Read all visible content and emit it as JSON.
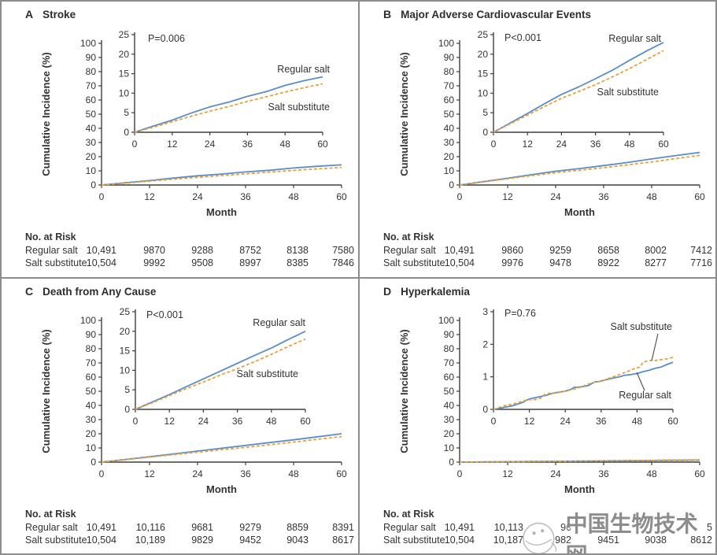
{
  "figure": {
    "ylabel": "Cumulative Incidence (%)",
    "xlabel": "Month",
    "risk_header": "No. at Risk",
    "series_names": [
      "Regular salt",
      "Salt substitute"
    ],
    "watermark": {
      "text": "中国生物技术网",
      "logo": "swirl-badge-icon"
    },
    "colors": {
      "regular_salt": "#5b8dc8",
      "salt_substitute": "#e7a13c",
      "axis": "#3e3e3e",
      "text": "#333333",
      "border": "#8d8d8d",
      "watermark": "#868686"
    }
  },
  "chart_data": [
    {
      "type": "line",
      "letter": "A",
      "title": "Stroke",
      "pvalue": "P=0.006",
      "axes": {
        "main": {
          "xlim": [
            0,
            60
          ],
          "xticks": [
            0,
            12,
            24,
            36,
            48,
            60
          ],
          "ylim": [
            0,
            100
          ],
          "yticks": [
            0,
            10,
            20,
            30,
            40,
            50,
            60,
            70,
            80,
            90,
            100
          ]
        },
        "inset": {
          "ylim": [
            0,
            25
          ],
          "yticks": [
            0,
            5,
            10,
            15,
            20,
            25
          ]
        }
      },
      "series": [
        {
          "name": "Regular salt",
          "line": "solid",
          "color_key": "regular_salt",
          "points": [
            [
              0,
              0
            ],
            [
              6,
              1.6
            ],
            [
              12,
              3.1
            ],
            [
              18,
              4.9
            ],
            [
              24,
              6.5
            ],
            [
              30,
              7.7
            ],
            [
              36,
              9.2
            ],
            [
              42,
              10.4
            ],
            [
              48,
              12.0
            ],
            [
              54,
              13.2
            ],
            [
              60,
              14.2
            ]
          ]
        },
        {
          "name": "Salt substitute",
          "line": "dashed",
          "color_key": "salt_substitute",
          "points": [
            [
              0,
              0
            ],
            [
              6,
              1.3
            ],
            [
              12,
              2.7
            ],
            [
              18,
              4.1
            ],
            [
              24,
              5.4
            ],
            [
              30,
              6.6
            ],
            [
              36,
              7.9
            ],
            [
              42,
              9.1
            ],
            [
              48,
              10.3
            ],
            [
              54,
              11.4
            ],
            [
              60,
              12.4
            ]
          ]
        }
      ],
      "risk": {
        "rows": [
          {
            "label": "Regular salt",
            "values": [
              "10,491",
              "9870",
              "9288",
              "8752",
              "8138",
              "7580"
            ]
          },
          {
            "label": "Salt substitute",
            "values": [
              "10,504",
              "9992",
              "9508",
              "8997",
              "8385",
              "7846"
            ]
          }
        ]
      }
    },
    {
      "type": "line",
      "letter": "B",
      "title": "Major Adverse Cardiovascular Events",
      "pvalue": "P<0.001",
      "axes": {
        "main": {
          "xlim": [
            0,
            60
          ],
          "xticks": [
            0,
            12,
            24,
            36,
            48,
            60
          ],
          "ylim": [
            0,
            100
          ],
          "yticks": [
            0,
            10,
            20,
            30,
            40,
            50,
            60,
            70,
            80,
            90,
            100
          ]
        },
        "inset": {
          "ylim": [
            0,
            25
          ],
          "yticks": [
            0,
            5,
            10,
            15,
            20,
            25
          ]
        }
      },
      "series": [
        {
          "name": "Regular salt",
          "line": "solid",
          "color_key": "regular_salt",
          "points": [
            [
              0,
              0
            ],
            [
              6,
              2.4
            ],
            [
              12,
              4.8
            ],
            [
              18,
              7.3
            ],
            [
              24,
              9.7
            ],
            [
              30,
              11.6
            ],
            [
              36,
              13.7
            ],
            [
              42,
              15.9
            ],
            [
              48,
              18.4
            ],
            [
              54,
              20.8
            ],
            [
              60,
              23.0
            ]
          ]
        },
        {
          "name": "Salt substitute",
          "line": "dashed",
          "color_key": "salt_substitute",
          "points": [
            [
              0,
              0
            ],
            [
              6,
              2.2
            ],
            [
              12,
              4.4
            ],
            [
              18,
              6.6
            ],
            [
              24,
              8.7
            ],
            [
              30,
              10.4
            ],
            [
              36,
              12.2
            ],
            [
              42,
              14.2
            ],
            [
              48,
              16.3
            ],
            [
              54,
              18.6
            ],
            [
              60,
              20.9
            ]
          ]
        }
      ],
      "risk": {
        "rows": [
          {
            "label": "Regular salt",
            "values": [
              "10,491",
              "9860",
              "9259",
              "8658",
              "8002",
              "7412"
            ]
          },
          {
            "label": "Salt substitute",
            "values": [
              "10,504",
              "9976",
              "9478",
              "8922",
              "8277",
              "7716"
            ]
          }
        ]
      }
    },
    {
      "type": "line",
      "letter": "C",
      "title": "Death from Any Cause",
      "pvalue": "P<0.001",
      "axes": {
        "main": {
          "xlim": [
            0,
            60
          ],
          "xticks": [
            0,
            12,
            24,
            36,
            48,
            60
          ],
          "ylim": [
            0,
            100
          ],
          "yticks": [
            0,
            10,
            20,
            30,
            40,
            50,
            60,
            70,
            80,
            90,
            100
          ]
        },
        "inset": {
          "ylim": [
            0,
            25
          ],
          "yticks": [
            0,
            5,
            10,
            15,
            20,
            25
          ]
        }
      },
      "series": [
        {
          "name": "Regular salt",
          "line": "solid",
          "color_key": "regular_salt",
          "points": [
            [
              0,
              0
            ],
            [
              6,
              1.9
            ],
            [
              12,
              3.8
            ],
            [
              18,
              5.8
            ],
            [
              24,
              7.8
            ],
            [
              30,
              9.8
            ],
            [
              36,
              11.8
            ],
            [
              42,
              13.8
            ],
            [
              48,
              15.7
            ],
            [
              54,
              17.9
            ],
            [
              60,
              20.0
            ]
          ]
        },
        {
          "name": "Salt substitute",
          "line": "dashed",
          "color_key": "salt_substitute",
          "points": [
            [
              0,
              0
            ],
            [
              6,
              1.7
            ],
            [
              12,
              3.5
            ],
            [
              18,
              5.3
            ],
            [
              24,
              7.0
            ],
            [
              30,
              8.8
            ],
            [
              36,
              10.4
            ],
            [
              42,
              12.2
            ],
            [
              48,
              14.1
            ],
            [
              54,
              16.1
            ],
            [
              60,
              18.0
            ]
          ]
        }
      ],
      "risk": {
        "rows": [
          {
            "label": "Regular salt",
            "values": [
              "10,491",
              "10,116",
              "9681",
              "9279",
              "8859",
              "8391"
            ]
          },
          {
            "label": "Salt substitute",
            "values": [
              "10,504",
              "10,189",
              "9829",
              "9452",
              "9043",
              "8617"
            ]
          }
        ]
      }
    },
    {
      "type": "line",
      "letter": "D",
      "title": "Hyperkalemia",
      "pvalue": "P=0.76",
      "axes": {
        "main": {
          "xlim": [
            0,
            60
          ],
          "xticks": [
            0,
            12,
            24,
            36,
            48,
            60
          ],
          "ylim": [
            0,
            100
          ],
          "yticks": [
            0,
            10,
            20,
            30,
            40,
            50,
            60,
            70,
            80,
            90,
            100
          ]
        },
        "inset": {
          "ylim": [
            0,
            3
          ],
          "yticks": [
            0,
            1,
            2,
            3
          ]
        }
      },
      "series": [
        {
          "name": "Regular salt",
          "line": "solid",
          "color_key": "regular_salt",
          "points": [
            [
              0,
              0
            ],
            [
              2,
              0.03
            ],
            [
              4,
              0.07
            ],
            [
              6,
              0.1
            ],
            [
              8,
              0.16
            ],
            [
              10,
              0.22
            ],
            [
              11,
              0.28
            ],
            [
              12,
              0.32
            ],
            [
              14,
              0.36
            ],
            [
              16,
              0.4
            ],
            [
              18,
              0.44
            ],
            [
              20,
              0.5
            ],
            [
              22,
              0.53
            ],
            [
              24,
              0.56
            ],
            [
              26,
              0.62
            ],
            [
              27,
              0.68
            ],
            [
              28,
              0.68
            ],
            [
              30,
              0.7
            ],
            [
              32,
              0.74
            ],
            [
              33,
              0.8
            ],
            [
              34,
              0.85
            ],
            [
              35,
              0.85
            ],
            [
              36,
              0.87
            ],
            [
              38,
              0.92
            ],
            [
              40,
              0.96
            ],
            [
              42,
              1.0
            ],
            [
              44,
              1.05
            ],
            [
              46,
              1.07
            ],
            [
              48,
              1.1
            ],
            [
              50,
              1.16
            ],
            [
              52,
              1.2
            ],
            [
              54,
              1.26
            ],
            [
              56,
              1.3
            ],
            [
              58,
              1.38
            ],
            [
              60,
              1.45
            ]
          ]
        },
        {
          "name": "Salt substitute",
          "line": "dashed",
          "color_key": "salt_substitute",
          "points": [
            [
              0,
              0
            ],
            [
              2,
              0.06
            ],
            [
              4,
              0.12
            ],
            [
              6,
              0.15
            ],
            [
              8,
              0.2
            ],
            [
              10,
              0.26
            ],
            [
              12,
              0.3
            ],
            [
              14,
              0.3
            ],
            [
              16,
              0.35
            ],
            [
              17,
              0.45
            ],
            [
              19,
              0.5
            ],
            [
              21,
              0.5
            ],
            [
              23,
              0.54
            ],
            [
              25,
              0.58
            ],
            [
              27,
              0.62
            ],
            [
              29,
              0.68
            ],
            [
              31,
              0.75
            ],
            [
              33,
              0.82
            ],
            [
              35,
              0.85
            ],
            [
              37,
              0.9
            ],
            [
              39,
              0.97
            ],
            [
              41,
              1.03
            ],
            [
              43,
              1.1
            ],
            [
              45,
              1.17
            ],
            [
              47,
              1.25
            ],
            [
              49,
              1.3
            ],
            [
              50,
              1.45
            ],
            [
              52,
              1.5
            ],
            [
              54,
              1.5
            ],
            [
              56,
              1.53
            ],
            [
              58,
              1.55
            ],
            [
              60,
              1.6
            ]
          ]
        }
      ],
      "risk": {
        "rows": [
          {
            "label": "Regular salt",
            "values": [
              "10,491",
              "10,113",
              "96",
              "",
              "",
              "5"
            ]
          },
          {
            "label": "Salt substitute",
            "values": [
              "10,504",
              "10,187",
              "982",
              "9451",
              "9038",
              "8612"
            ]
          }
        ]
      }
    }
  ]
}
